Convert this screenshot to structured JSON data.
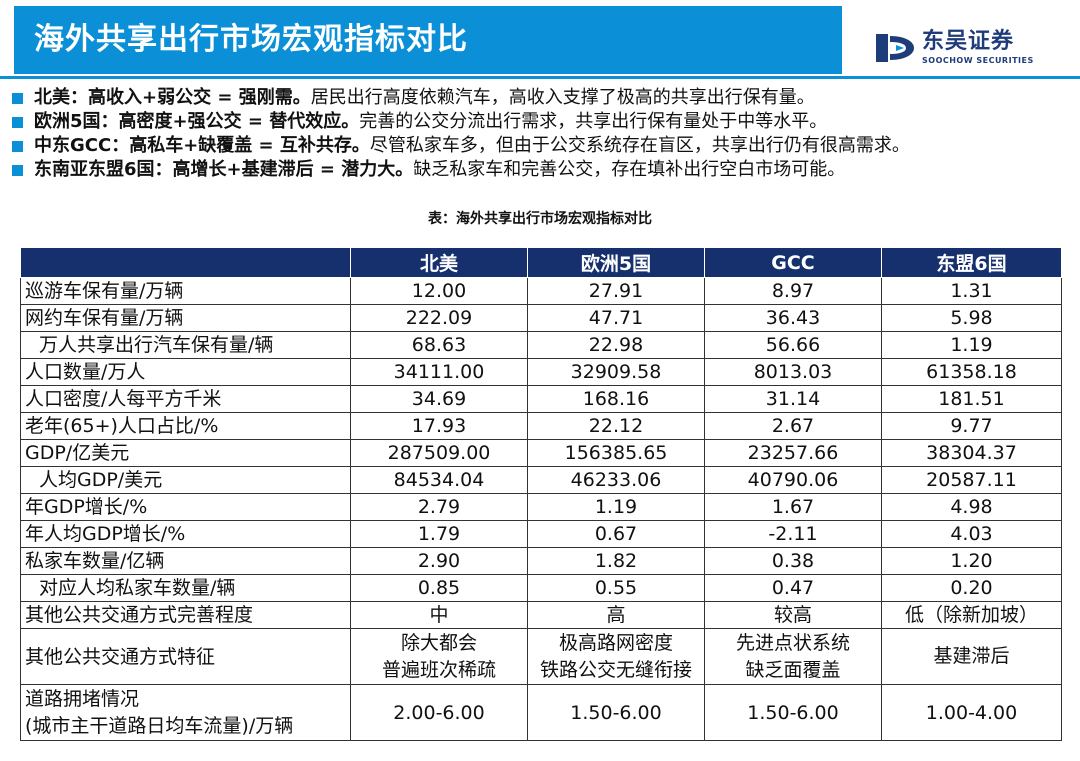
{
  "title": "海外共享出行市场宏观指标对比",
  "brand": {
    "name_cn": "东吴证券",
    "name_en": "SOOCHOW SECURITIES",
    "color": "#1f3c7a"
  },
  "colors": {
    "accent": "#0b8fd6",
    "table_header": "#16306d"
  },
  "bullets": [
    {
      "lead": "北美：高收入+弱公交 = 强刚需。",
      "text": "居民出行高度依赖汽车，高收入支撑了极高的共享出行保有量。"
    },
    {
      "lead": "欧洲5国：高密度+强公交 = 替代效应。",
      "text": "完善的公交分流出行需求，共享出行保有量处于中等水平。"
    },
    {
      "lead": "中东GCC：高私车+缺覆盖 = 互补共存。",
      "text": "尽管私家车多，但由于公交系统存在盲区，共享出行仍有很高需求。"
    },
    {
      "lead": "东南亚东盟6国：高增长+基建滞后 = 潜力大。",
      "text": "缺乏私家车和完善公交，存在填补出行空白市场可能。"
    }
  ],
  "table": {
    "caption": "表：海外共享出行市场宏观指标对比",
    "columns": [
      "北美",
      "欧洲5国",
      "GCC",
      "东盟6国"
    ],
    "rows": [
      {
        "label": "巡游车保有量/万辆",
        "values": [
          "12.00",
          "27.91",
          "8.97",
          "1.31"
        ]
      },
      {
        "label": "网约车保有量/万辆",
        "values": [
          "222.09",
          "47.71",
          "36.43",
          "5.98"
        ]
      },
      {
        "label": "万人共享出行汽车保有量/辆",
        "values": [
          "68.63",
          "22.98",
          "56.66",
          "1.19"
        ]
      },
      {
        "label": "人口数量/万人",
        "values": [
          "34111.00",
          "32909.58",
          "8013.03",
          "61358.18"
        ]
      },
      {
        "label": "人口密度/人每平方千米",
        "values": [
          "34.69",
          "168.16",
          "31.14",
          "181.51"
        ]
      },
      {
        "label": "老年(65+)人口占比/%",
        "values": [
          "17.93",
          "22.12",
          "2.67",
          "9.77"
        ]
      },
      {
        "label": "GDP/亿美元",
        "values": [
          "287509.00",
          "156385.65",
          "23257.66",
          "38304.37"
        ]
      },
      {
        "label": "人均GDP/美元",
        "values": [
          "84534.04",
          "46233.06",
          "40790.06",
          "20587.11"
        ]
      },
      {
        "label": "年GDP增长/%",
        "values": [
          "2.79",
          "1.19",
          "1.67",
          "4.98"
        ]
      },
      {
        "label": "年人均GDP增长/%",
        "values": [
          "1.79",
          "0.67",
          "-2.11",
          "4.03"
        ]
      },
      {
        "label": "私家车数量/亿辆",
        "values": [
          "2.90",
          "1.82",
          "0.38",
          "1.20"
        ]
      },
      {
        "label": "对应人均私家车数量/辆",
        "values": [
          "0.85",
          "0.55",
          "0.47",
          "0.20"
        ]
      },
      {
        "label": "其他公共交通方式完善程度",
        "values": [
          "中",
          "高",
          "较高",
          "低（除新加坡）"
        ]
      }
    ],
    "feature_row": {
      "label": "其他公共交通方式特征",
      "values": [
        [
          "除大都会",
          "普遍班次稀疏"
        ],
        [
          "极高路网密度",
          "铁路公交无缝衔接"
        ],
        [
          "先进点状系统",
          "缺乏面覆盖"
        ],
        [
          "基建滞后"
        ]
      ]
    },
    "congestion_row": {
      "label": [
        "道路拥堵情况",
        "(城市主干道路日均车流量)/万辆"
      ],
      "values": [
        "2.00-6.00",
        "1.50-6.00",
        "1.50-6.00",
        "1.00-4.00"
      ]
    }
  }
}
